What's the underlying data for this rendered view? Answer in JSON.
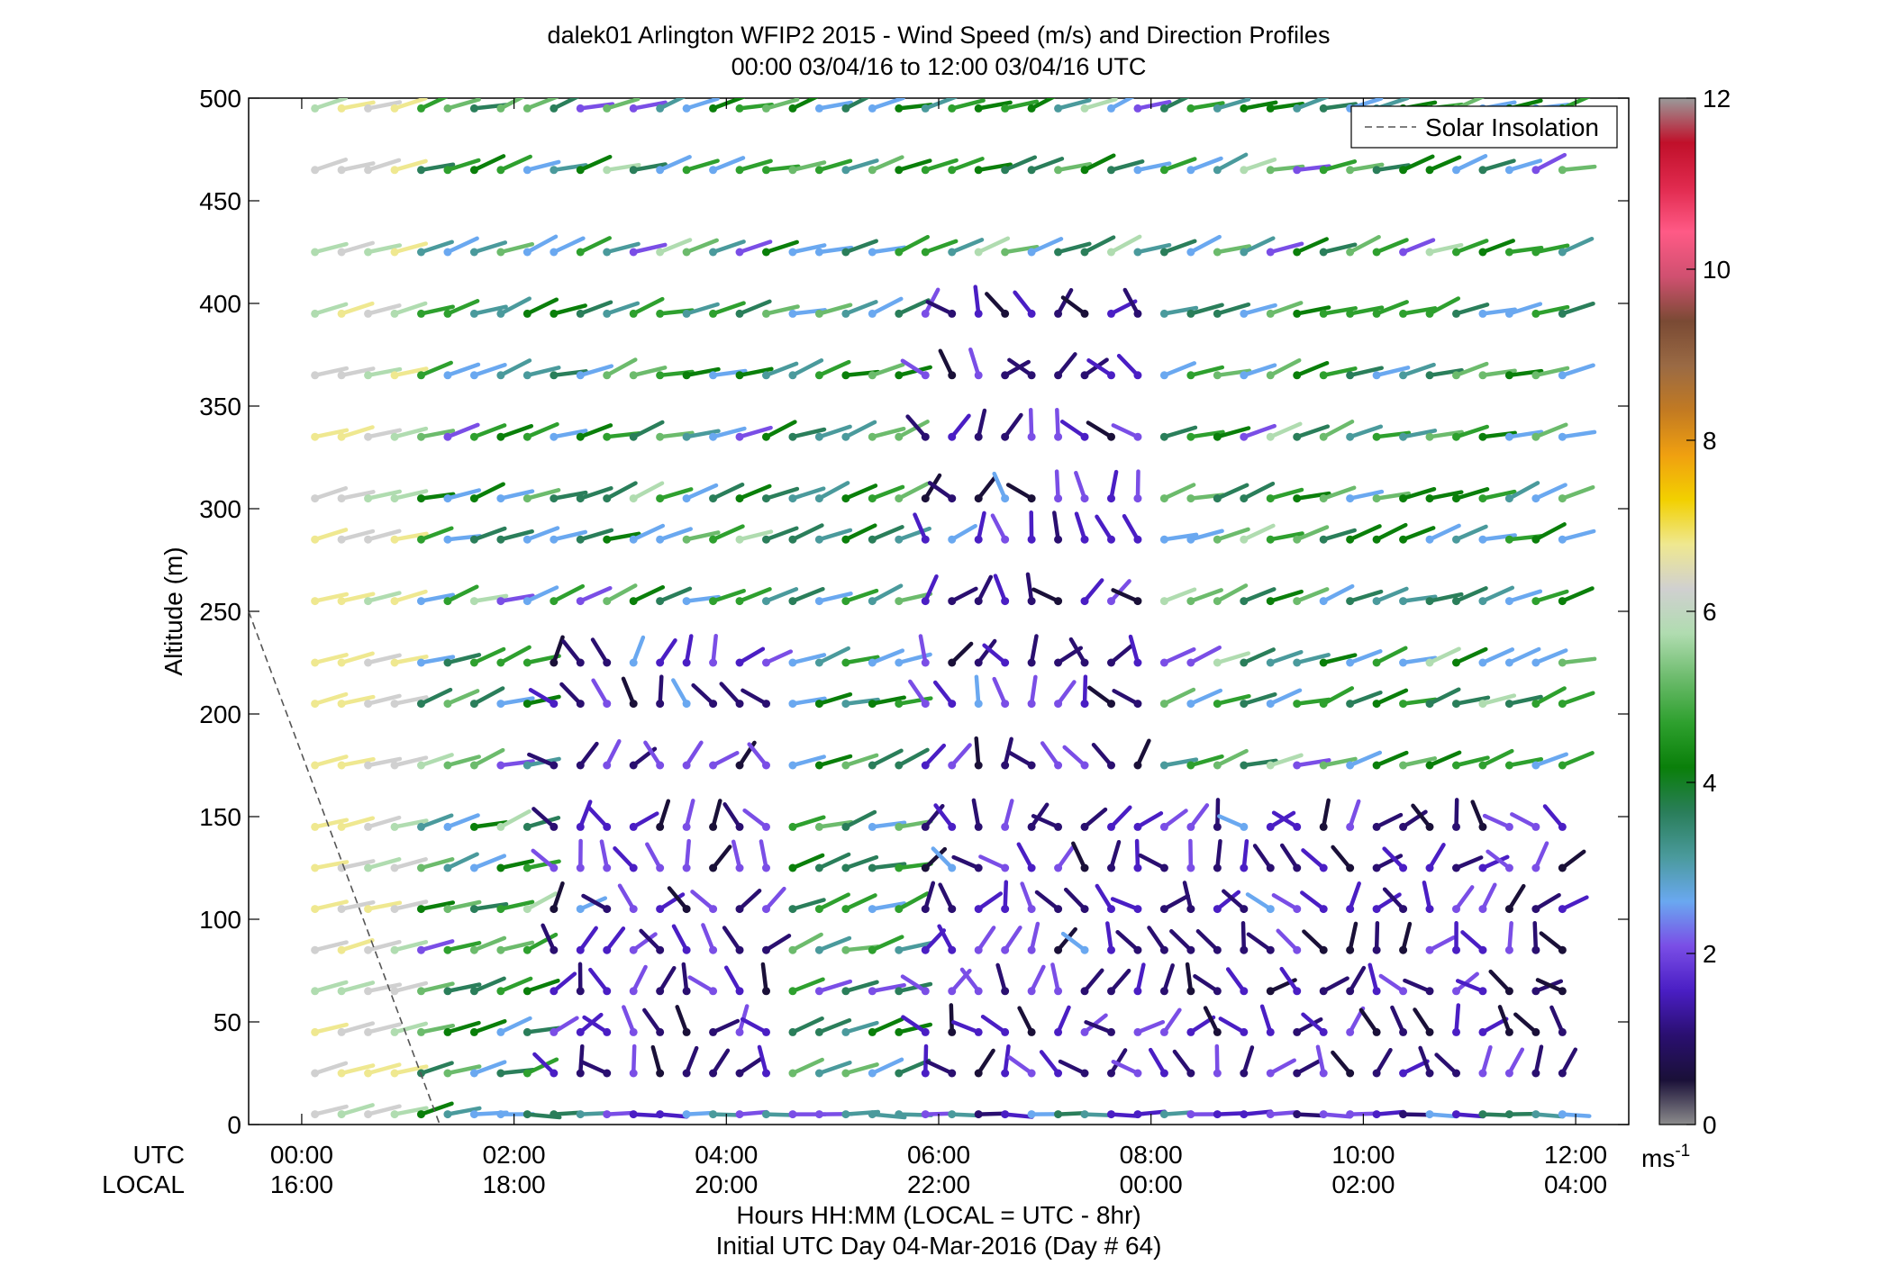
{
  "chart_data": {
    "type": "wind-barb-profile",
    "title": "dalek01 Arlington WFIP2 2015 - Wind Speed (m/s) and Direction Profiles",
    "subtitle": "00:00 03/04/16 to 12:00 03/04/16  UTC",
    "ylabel": "Altitude (m)",
    "xlabel": "Hours HH:MM  (LOCAL = UTC - 8hr)",
    "xlabel2": "Initial UTC Day 04-Mar-2016 (Day # 64)",
    "row_label_utc": "UTC",
    "row_label_local": "LOCAL",
    "xlim_hours": [
      -0.5,
      12.5
    ],
    "ylim": [
      0,
      500
    ],
    "y_ticks": [
      0,
      50,
      100,
      150,
      200,
      250,
      300,
      350,
      400,
      450,
      500
    ],
    "x_ticks_utc": [
      "00:00",
      "02:00",
      "04:00",
      "06:00",
      "08:00",
      "10:00",
      "12:00"
    ],
    "x_ticks_local": [
      "16:00",
      "18:00",
      "20:00",
      "22:00",
      "00:00",
      "02:00",
      "04:00"
    ],
    "x_tick_hours": [
      0,
      2,
      4,
      6,
      8,
      10,
      12
    ],
    "altitudes": [
      5,
      25,
      45,
      65,
      85,
      105,
      125,
      145,
      175,
      205,
      225,
      255,
      285,
      305,
      335,
      365,
      395,
      425,
      465,
      495
    ],
    "time_step_hours": 0.25,
    "legend": [
      {
        "label": "Solar Insolation",
        "style": "dashed",
        "color": "#555555"
      }
    ],
    "solar_insolation": {
      "x": [
        -0.5,
        1.3
      ],
      "y": [
        250,
        0
      ]
    },
    "colorbar": {
      "label": "ms",
      "label_exp": "-1",
      "range": [
        0,
        12
      ],
      "ticks": [
        0,
        2,
        4,
        6,
        8,
        10,
        12
      ],
      "stops": [
        "#8c8c8c",
        "#1a1038",
        "#2a0f70",
        "#4a1ec4",
        "#7a4ee6",
        "#6aa8f0",
        "#4a9a9c",
        "#2a7e5a",
        "#0a7f0a",
        "#2ea02e",
        "#6cbb6c",
        "#b0dcb0",
        "#d0d0d0",
        "#efe890",
        "#f2d000",
        "#f0a010",
        "#c27a22",
        "#9a6a44",
        "#7a4a34",
        "#d05070",
        "#ff5a86",
        "#e02a4e",
        "#c0102a",
        "#9a9a9a"
      ]
    },
    "colors": {
      "axes": "#000000",
      "background": "#ffffff"
    }
  }
}
